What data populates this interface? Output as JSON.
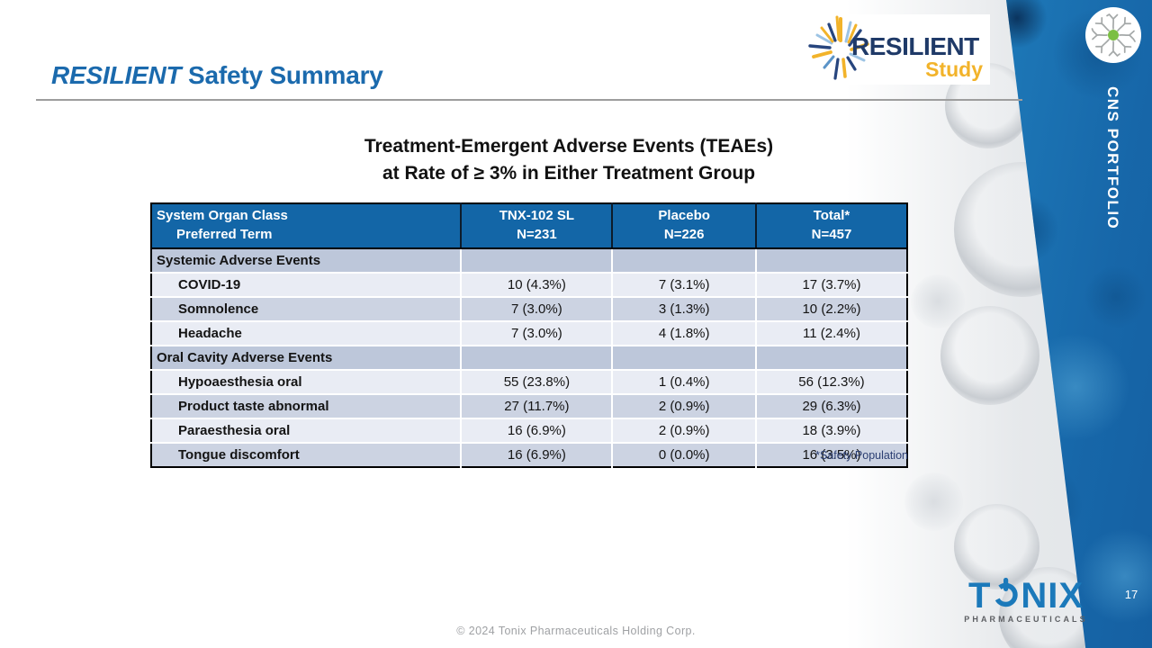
{
  "slide": {
    "page_number": "17",
    "sidebar_label": "CNS PORTFOLIO"
  },
  "header": {
    "title_italic": "RESILIENT",
    "title_rest": "Safety Summary"
  },
  "resilient_logo": {
    "name": "RESILIENT",
    "sub": "Study"
  },
  "table_title": {
    "line1": "Treatment-Emergent Adverse Events (TEAEs)",
    "line2": "at Rate of ≥ 3% in Either Treatment Group"
  },
  "table": {
    "header": {
      "col1_line1": "System Organ Class",
      "col1_line2": "Preferred Term",
      "col2_line1": "TNX-102 SL",
      "col2_line2": "N=231",
      "col3_line1": "Placebo",
      "col3_line2": "N=226",
      "col4_line1": "Total*",
      "col4_line2": "N=457"
    },
    "rows": [
      {
        "type": "section",
        "label": "Systemic Adverse Events",
        "values": [
          "",
          "",
          ""
        ]
      },
      {
        "type": "item",
        "label": "COVID-19",
        "values": [
          "10 (4.3%)",
          "7 (3.1%)",
          "17 (3.7%)"
        ]
      },
      {
        "type": "item",
        "label": "Somnolence",
        "values": [
          "7 (3.0%)",
          "3 (1.3%)",
          "10 (2.2%)"
        ]
      },
      {
        "type": "item",
        "label": "Headache",
        "values": [
          "7 (3.0%)",
          "4 (1.8%)",
          "11 (2.4%)"
        ]
      },
      {
        "type": "section",
        "label": "Oral Cavity Adverse Events",
        "values": [
          "",
          "",
          ""
        ]
      },
      {
        "type": "item",
        "label": "Hypoaesthesia oral",
        "values": [
          "55 (23.8%)",
          "1 (0.4%)",
          "56 (12.3%)"
        ]
      },
      {
        "type": "item",
        "label": "Product taste abnormal",
        "values": [
          "27 (11.7%)",
          "2 (0.9%)",
          "29 (6.3%)"
        ]
      },
      {
        "type": "item",
        "label": "Paraesthesia oral",
        "values": [
          "16 (6.9%)",
          "2 (0.9%)",
          "18 (3.9%)"
        ]
      },
      {
        "type": "item",
        "label": "Tongue discomfort",
        "values": [
          "16 (6.9%)",
          "0 (0.0%)",
          "16 (3.5%)"
        ]
      }
    ]
  },
  "footnote": "*Safety Population",
  "footer": {
    "copyright": "© 2024 Tonix Pharmaceuticals Holding Corp.",
    "tonix_t": "T",
    "tonix_nix": "NIX",
    "tonix_sub": "PHARMACEUTICALS"
  },
  "colors": {
    "title_blue": "#1b6aad",
    "table_header_blue": "#1366a7",
    "band_blue": "#1767a9",
    "section_row": "#bdc7da",
    "alt_row": "#ccd3e2",
    "light_row": "#e9ecf4",
    "resilient_navy": "#1f3a68",
    "resilient_gold": "#f2b32a",
    "tonix_blue": "#1b79ba",
    "footnote_navy": "#2b3e72"
  }
}
